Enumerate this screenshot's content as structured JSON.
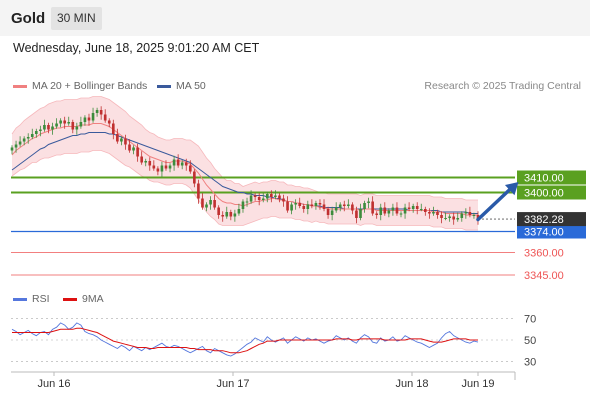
{
  "header": {
    "instrument": "Gold",
    "interval": "30 MIN"
  },
  "datetime": "Wednesday, June 18, 2025 9:01:20 AM CET",
  "credit": "Research © 2025 Trading Central",
  "colors": {
    "bollinger": "#f08080",
    "bollinger_fill": "#fadadd",
    "ma50": "#3a5a9c",
    "resistance": "#5aa020",
    "support": "#2a6ad8",
    "extra": "#ee5555",
    "rsi": "#5577dd",
    "rsi_ma": "#dd1111",
    "arrow": "#2a5aa8",
    "candle_up": "#3c8c3c",
    "candle_down": "#c03030",
    "current": "#333333"
  },
  "chart_data": [
    {
      "type": "candlestick",
      "legend": [
        {
          "name": "MA 20 + Bollinger Bands",
          "color": "#f08080"
        },
        {
          "name": "MA 50",
          "color": "#3a5a9c"
        }
      ],
      "x_ticks": [
        "Jun 16",
        "Jun 17",
        "Jun 18",
        "Jun 19"
      ],
      "y_range": [
        3335,
        3465
      ],
      "current_price": {
        "value": 3382.28,
        "label": "3382.28"
      },
      "levels": [
        {
          "label": "3410.00",
          "value": 3410.0,
          "kind": "resistance"
        },
        {
          "label": "3400.00",
          "value": 3400.0,
          "kind": "resistance"
        },
        {
          "label": "3374.00",
          "value": 3374.0,
          "kind": "pivot"
        },
        {
          "label": "3360.00",
          "value": 3360.0,
          "kind": "support"
        },
        {
          "label": "3345.00",
          "value": 3345.0,
          "kind": "support"
        }
      ],
      "forecast_arrow": {
        "from_index": 115,
        "from_value": 3382,
        "to_index": 125,
        "to_value": 3407
      },
      "close": [
        3430,
        3432,
        3434,
        3436,
        3437,
        3439,
        3441,
        3442,
        3445,
        3442,
        3444,
        3446,
        3448,
        3446,
        3447,
        3442,
        3444,
        3447,
        3450,
        3448,
        3453,
        3455,
        3452,
        3448,
        3446,
        3439,
        3434,
        3436,
        3432,
        3428,
        3430,
        3424,
        3420,
        3421,
        3418,
        3416,
        3414,
        3418,
        3416,
        3418,
        3422,
        3418,
        3420,
        3418,
        3414,
        3406,
        3396,
        3390,
        3392,
        3395,
        3390,
        3385,
        3384,
        3387,
        3384,
        3386,
        3389,
        3394,
        3394,
        3398,
        3397,
        3395,
        3396,
        3399,
        3397,
        3398,
        3396,
        3394,
        3388,
        3392,
        3393,
        3391,
        3389,
        3392,
        3391,
        3393,
        3392,
        3389,
        3385,
        3388,
        3390,
        3392,
        3391,
        3392,
        3388,
        3383,
        3389,
        3393,
        3394,
        3386,
        3385,
        3390,
        3386,
        3388,
        3390,
        3386,
        3386,
        3390,
        3389,
        3391,
        3389,
        3389,
        3387,
        3386,
        3387,
        3385,
        3383,
        3383,
        3384,
        3382,
        3383,
        3386,
        3387,
        3385,
        3385,
        3382
      ],
      "ma20": [
        3425,
        3428,
        3430,
        3432,
        3434,
        3436,
        3437,
        3439,
        3440,
        3441,
        3442,
        3443,
        3443,
        3444,
        3444,
        3444,
        3444,
        3445,
        3445,
        3445,
        3446,
        3446,
        3446,
        3445,
        3444,
        3442,
        3440,
        3438,
        3436,
        3434,
        3432,
        3430,
        3428,
        3426,
        3424,
        3423,
        3422,
        3421,
        3420,
        3420,
        3421,
        3421,
        3421,
        3420,
        3419,
        3416,
        3413,
        3409,
        3405,
        3402,
        3399,
        3396,
        3394,
        3393,
        3393,
        3392,
        3392,
        3391,
        3392,
        3393,
        3394,
        3394,
        3395,
        3395,
        3396,
        3396,
        3395,
        3395,
        3394,
        3394,
        3393,
        3393,
        3392,
        3392,
        3391,
        3391,
        3390,
        3390,
        3389,
        3389,
        3389,
        3389,
        3389,
        3389,
        3389,
        3389,
        3388,
        3389,
        3389,
        3389,
        3388,
        3388,
        3388,
        3388,
        3388,
        3388,
        3388,
        3388,
        3388,
        3388,
        3388,
        3388,
        3388,
        3388,
        3387,
        3387,
        3387,
        3386,
        3386,
        3386,
        3386,
        3386,
        3385,
        3385,
        3385,
        3385
      ],
      "ma50": [
        3415,
        3417,
        3419,
        3421,
        3423,
        3425,
        3427,
        3429,
        3430,
        3432,
        3433,
        3434,
        3435,
        3436,
        3437,
        3438,
        3438,
        3439,
        3439,
        3440,
        3440,
        3440,
        3440,
        3440,
        3439,
        3439,
        3438,
        3437,
        3436,
        3435,
        3434,
        3433,
        3432,
        3431,
        3430,
        3429,
        3428,
        3427,
        3426,
        3425,
        3424,
        3423,
        3422,
        3421,
        3420,
        3418,
        3416,
        3414,
        3412,
        3410,
        3408,
        3406,
        3404,
        3403,
        3402,
        3401,
        3400,
        3400,
        3399,
        3399,
        3398,
        3398,
        3398,
        3397,
        3397,
        3396,
        3396,
        3395,
        3394,
        3394,
        3393,
        3393,
        3392,
        3392,
        3391,
        3391,
        3391,
        3390,
        3390,
        3390,
        3390,
        3390,
        3389,
        3389,
        3389,
        3389,
        3389,
        3389,
        3389,
        3389,
        3389,
        3389,
        3389,
        3389,
        3389,
        3389,
        3389,
        3389,
        3388,
        3388,
        3388,
        3388,
        3388,
        3388,
        3388,
        3388,
        3387,
        3387,
        3387,
        3387,
        3387,
        3387,
        3387,
        3386,
        3386,
        3386
      ],
      "bb_width": [
        14,
        15,
        15,
        16,
        16,
        16,
        17,
        17,
        17,
        18,
        18,
        18,
        18,
        18,
        18,
        18,
        18,
        18,
        18,
        18,
        18,
        18,
        18,
        18,
        18,
        18,
        18,
        18,
        18,
        17,
        17,
        17,
        17,
        16,
        16,
        16,
        15,
        15,
        15,
        15,
        15,
        15,
        15,
        15,
        16,
        17,
        18,
        18,
        18,
        18,
        17,
        17,
        16,
        15,
        15,
        14,
        14,
        13,
        13,
        13,
        13,
        12,
        12,
        12,
        12,
        12,
        12,
        12,
        11,
        11,
        11,
        11,
        11,
        11,
        11,
        10,
        10,
        10,
        10,
        10,
        10,
        10,
        10,
        10,
        10,
        10,
        10,
        10,
        10,
        10,
        10,
        10,
        10,
        10,
        10,
        10,
        10,
        10,
        10,
        10,
        10,
        10,
        10,
        10,
        10,
        10,
        10,
        10,
        10,
        10,
        10,
        10,
        10,
        10,
        10,
        10
      ]
    },
    {
      "type": "line",
      "legend": [
        {
          "name": "RSI",
          "color": "#5577dd"
        },
        {
          "name": "9MA",
          "color": "#dd1111"
        }
      ],
      "y_ticks": [
        70,
        50,
        30
      ],
      "y_range": [
        20,
        80
      ],
      "rsi": [
        60,
        58,
        55,
        57,
        59,
        56,
        54,
        57,
        58,
        55,
        60,
        62,
        66,
        64,
        60,
        62,
        66,
        64,
        58,
        56,
        55,
        53,
        50,
        48,
        46,
        44,
        42,
        45,
        43,
        40,
        44,
        42,
        40,
        43,
        41,
        43,
        45,
        47,
        44,
        43,
        45,
        44,
        42,
        40,
        38,
        40,
        42,
        44,
        40,
        38,
        42,
        40,
        38,
        36,
        35,
        37,
        40,
        43,
        46,
        48,
        52,
        50,
        48,
        53,
        50,
        48,
        50,
        52,
        47,
        50,
        53,
        51,
        49,
        52,
        50,
        51,
        49,
        47,
        49,
        50,
        54,
        52,
        50,
        52,
        49,
        47,
        52,
        55,
        53,
        48,
        47,
        52,
        49,
        50,
        53,
        49,
        50,
        54,
        52,
        50,
        48,
        47,
        45,
        43,
        45,
        47,
        52,
        56,
        58,
        54,
        52,
        50,
        48,
        47,
        49,
        48
      ],
      "rsi_ma": [
        57,
        57,
        57,
        57,
        57,
        57,
        57,
        57,
        57,
        57,
        58,
        59,
        60,
        60,
        60,
        60,
        61,
        61,
        60,
        59,
        58,
        57,
        55,
        53,
        51,
        49,
        48,
        47,
        46,
        45,
        44,
        43,
        43,
        43,
        42,
        42,
        43,
        43,
        43,
        43,
        43,
        43,
        43,
        43,
        42,
        42,
        41,
        41,
        41,
        41,
        40,
        40,
        40,
        39,
        38,
        38,
        38,
        39,
        40,
        42,
        44,
        46,
        47,
        49,
        49,
        49,
        50,
        50,
        50,
        50,
        50,
        50,
        50,
        50,
        50,
        50,
        50,
        50,
        50,
        50,
        51,
        51,
        51,
        51,
        50,
        50,
        51,
        51,
        51,
        51,
        51,
        51,
        50,
        50,
        50,
        50,
        50,
        50,
        51,
        51,
        51,
        51,
        50,
        49,
        48,
        48,
        48,
        49,
        50,
        51,
        51,
        51,
        51,
        50,
        50,
        50
      ]
    }
  ]
}
